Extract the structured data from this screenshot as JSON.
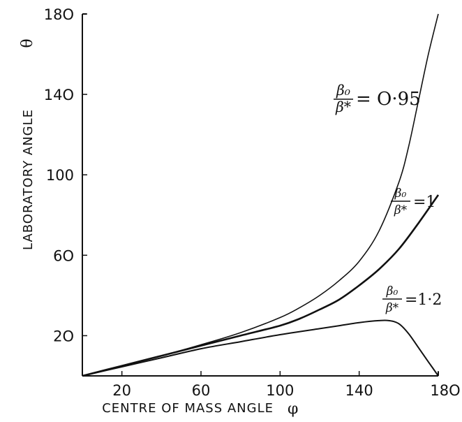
{
  "chart_data": {
    "type": "line",
    "title": "",
    "xlabel": "CENTRE OF MASS ANGLE",
    "xlabel_symbol": "φ",
    "ylabel": "LABORATORY ANGLE",
    "ylabel_symbol": "θ",
    "xlim": [
      0,
      180
    ],
    "ylim": [
      0,
      180
    ],
    "xticks": [
      20,
      60,
      100,
      140,
      180
    ],
    "xtick_labels": [
      "20",
      "60",
      "100",
      "140",
      "18O"
    ],
    "yticks": [
      20,
      60,
      100,
      140,
      180
    ],
    "ytick_labels": [
      "2O",
      "6O",
      "100",
      "14O",
      "18O"
    ],
    "grid": false,
    "legend": "none",
    "series": [
      {
        "name": "β₀/β* = 0.95",
        "label_ratio": "β₀/β*",
        "label_value": "= O·95",
        "x": [
          0,
          20,
          40,
          60,
          80,
          100,
          110,
          120,
          130,
          140,
          150,
          160,
          165,
          170,
          175,
          180
        ],
        "y": [
          0,
          5,
          10,
          15.5,
          21.5,
          29,
          34,
          40,
          47.5,
          57,
          72,
          96,
          114,
          137,
          160,
          180
        ]
      },
      {
        "name": "β₀/β* = 1",
        "label_ratio": "β₀/β*",
        "label_value": "=1",
        "x": [
          0,
          20,
          40,
          60,
          80,
          100,
          110,
          120,
          130,
          140,
          150,
          160,
          170,
          180
        ],
        "y": [
          0,
          5,
          10,
          15,
          20,
          25,
          28.5,
          33,
          38,
          45,
          53,
          63,
          76,
          90
        ]
      },
      {
        "name": "β₀/β* = 1.2",
        "label_ratio": "β₀/β*",
        "label_value": "=1·2",
        "x": [
          0,
          20,
          40,
          60,
          80,
          100,
          120,
          130,
          140,
          150,
          155,
          160,
          165,
          170,
          175,
          180
        ],
        "y": [
          0,
          4.5,
          9,
          13.5,
          17,
          20.5,
          23.5,
          25,
          26.5,
          27.5,
          27.5,
          26,
          21,
          14,
          7,
          0
        ]
      }
    ]
  }
}
